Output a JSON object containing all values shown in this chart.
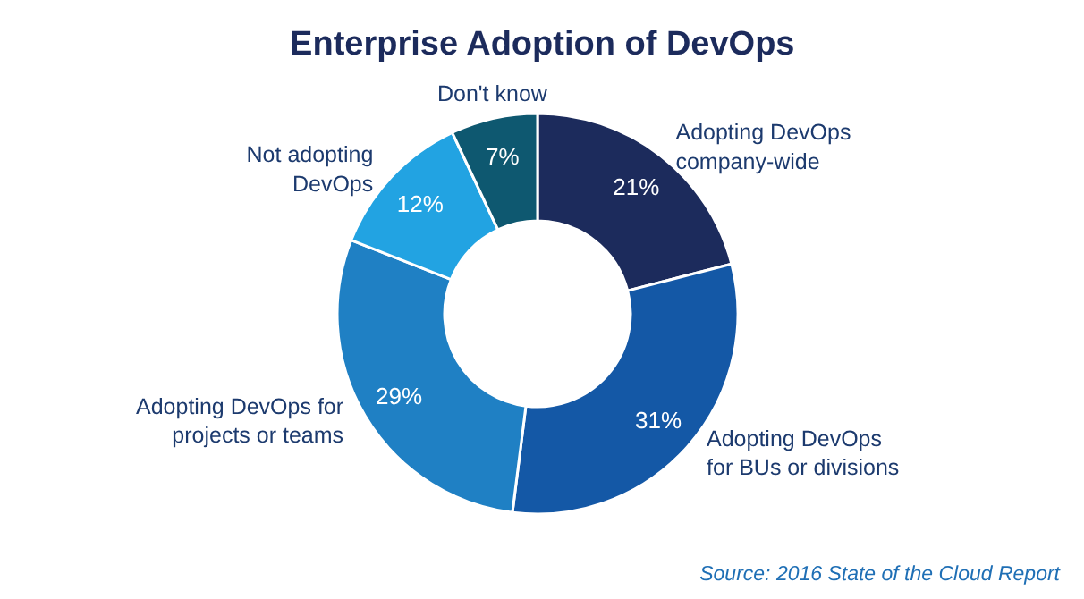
{
  "chart_data": {
    "type": "donut",
    "title": "Enterprise Adoption of DevOps",
    "categories": [
      "Adopting DevOps\ncompany-wide",
      "Adopting DevOps\nfor BUs or divisions",
      "Adopting DevOps for\nprojects or teams",
      "Not adopting\nDevOps",
      "Don't know"
    ],
    "values": [
      21,
      31,
      29,
      12,
      7
    ],
    "colors": [
      "#1c2b5c",
      "#1458a6",
      "#1f80c4",
      "#22a3e2",
      "#0e5870"
    ],
    "value_labels": [
      "21%",
      "31%",
      "29%",
      "12%",
      "7%"
    ],
    "annotations": [
      "Source: 2016 State of the Cloud Report"
    ]
  }
}
